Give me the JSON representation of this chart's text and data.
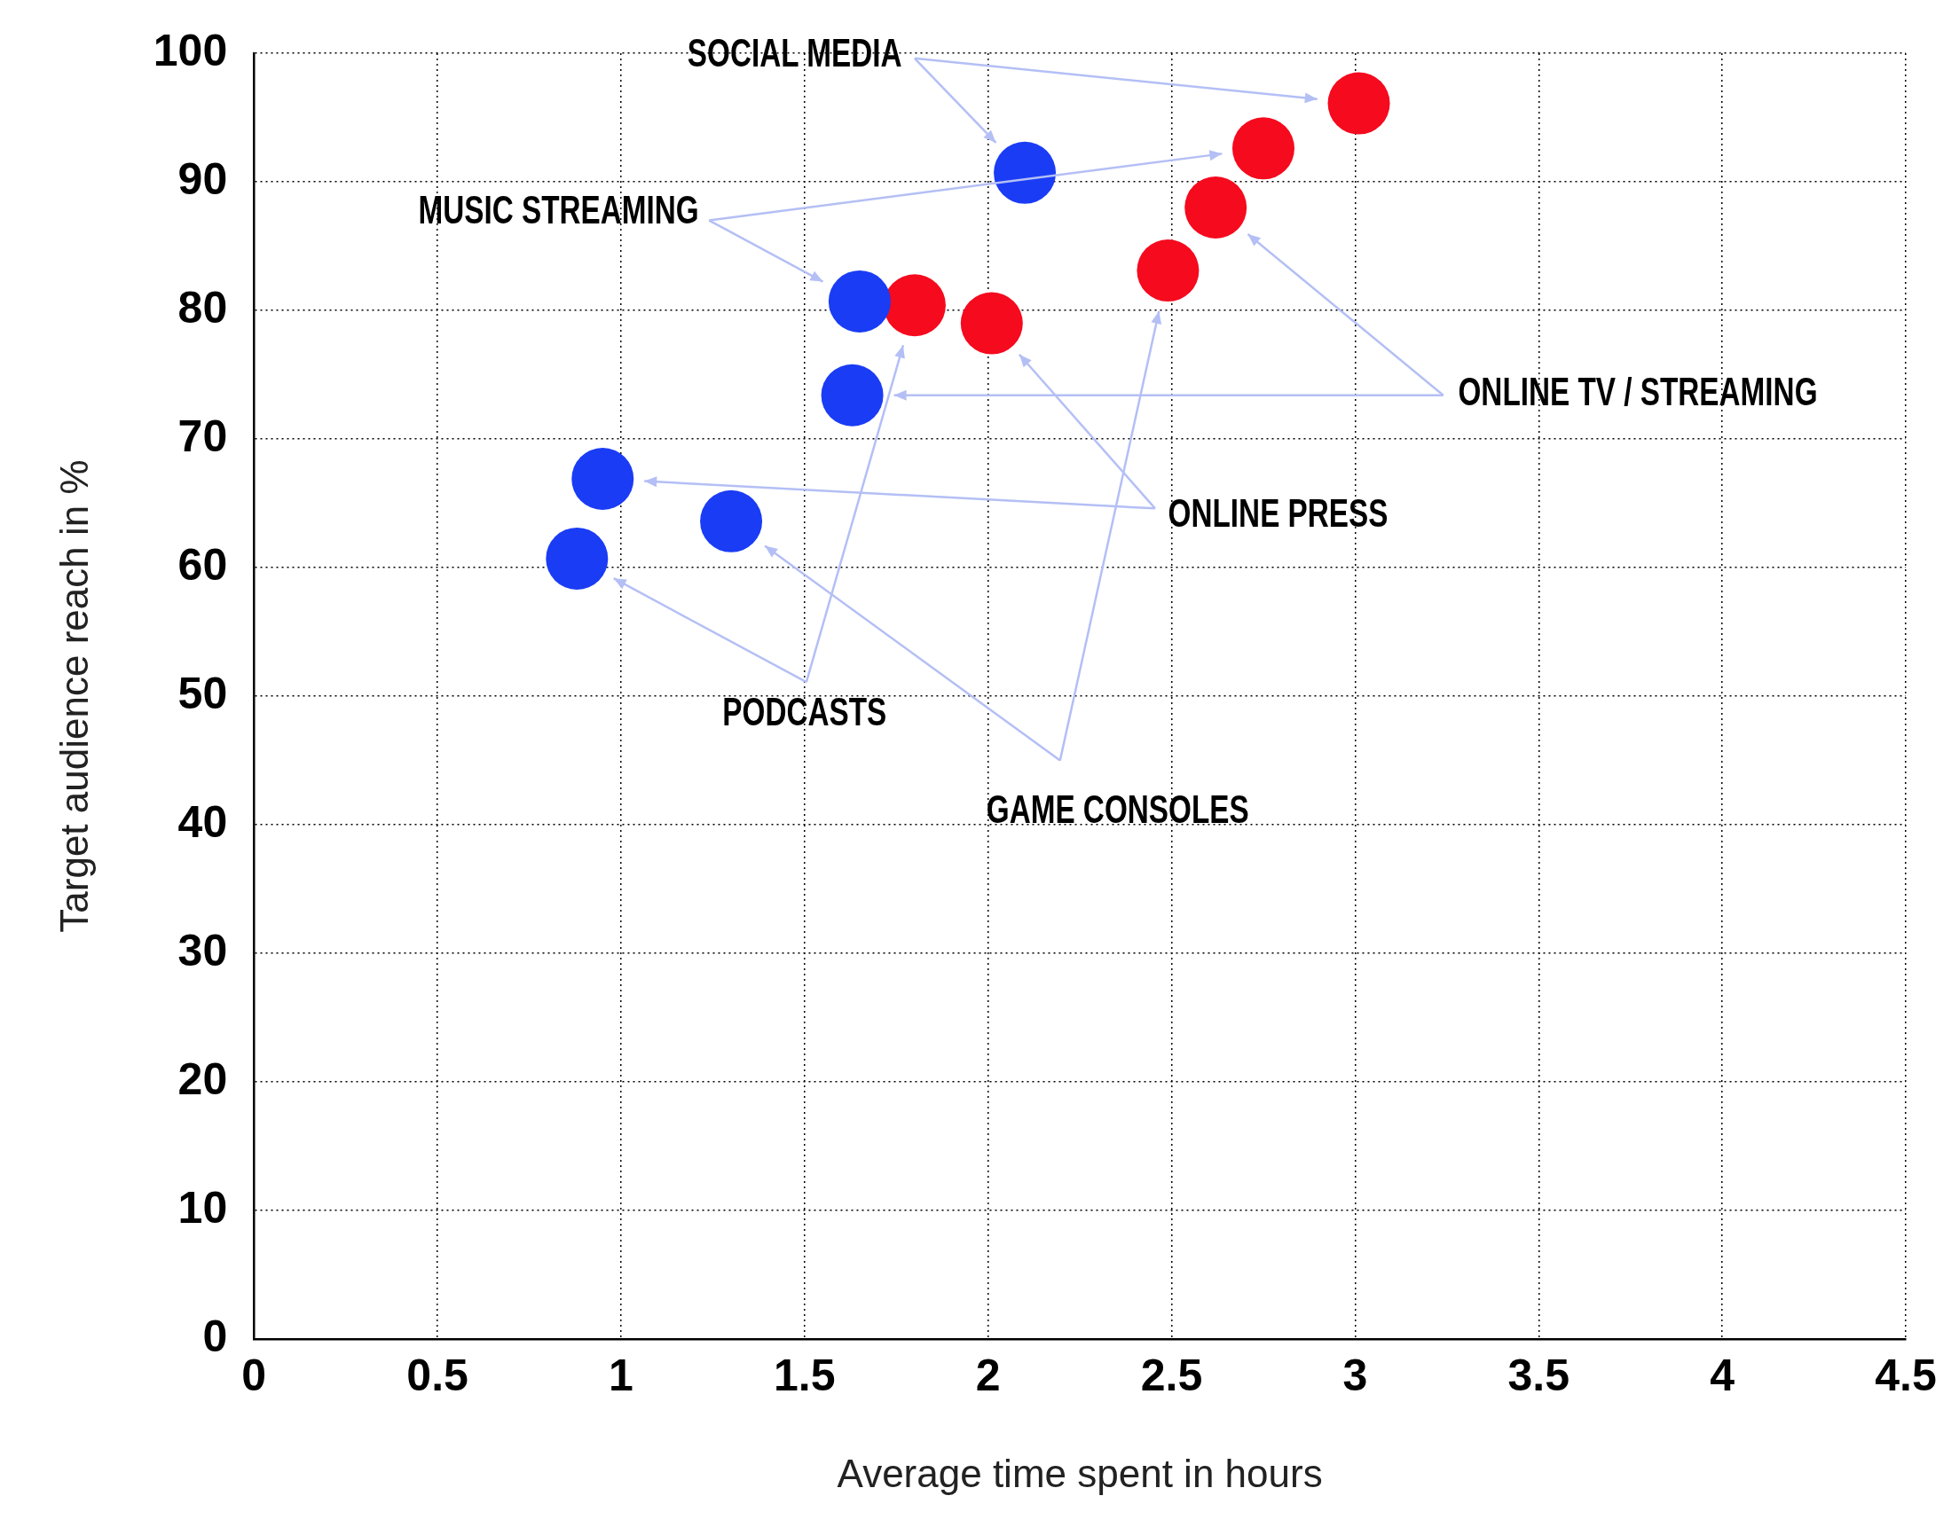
{
  "chart_data": {
    "type": "scatter",
    "xlabel": "Average time spent in hours",
    "ylabel": "Target audience reach in %",
    "series": [
      {
        "name": "SOCIAL MEDIA",
        "x": [
          2.1,
          3.01
        ],
        "values": [
          90.7,
          96.1
        ],
        "colors": [
          "#1a3cf5",
          "#f50a1e"
        ]
      },
      {
        "name": "MUSIC STREAMING",
        "x": [
          1.65,
          2.75
        ],
        "values": [
          80.7,
          92.6
        ],
        "colors": [
          "#1a3cf5",
          "#f50a1e"
        ]
      },
      {
        "name": "ONLINE TV / STREAMING",
        "x": [
          1.63,
          2.62
        ],
        "values": [
          73.4,
          88.0
        ],
        "colors": [
          "#1a3cf5",
          "#f50a1e"
        ]
      },
      {
        "name": "ONLINE PRESS",
        "x": [
          0.95,
          2.01
        ],
        "values": [
          66.9,
          79.0
        ],
        "colors": [
          "#1a3cf5",
          "#f50a1e"
        ]
      },
      {
        "name": "PODCASTS",
        "x": [
          0.88,
          1.8
        ],
        "values": [
          60.7,
          80.4
        ],
        "colors": [
          "#1a3cf5",
          "#f50a1e"
        ]
      },
      {
        "name": "GAME CONSOLES",
        "x": [
          1.3,
          2.49
        ],
        "values": [
          63.6,
          83.1
        ],
        "colors": [
          "#1a3cf5",
          "#f50a1e"
        ]
      }
    ],
    "xlim": [
      0,
      4.5
    ],
    "xticks": [
      0,
      0.5,
      1,
      1.5,
      2,
      2.5,
      3,
      3.5,
      4,
      4.5
    ],
    "ylim": [
      0,
      100
    ],
    "yticks": [
      0,
      10,
      20,
      30,
      40,
      50,
      60,
      70,
      80,
      90,
      100
    ],
    "grid": true,
    "legend": false,
    "marker": "circle"
  }
}
